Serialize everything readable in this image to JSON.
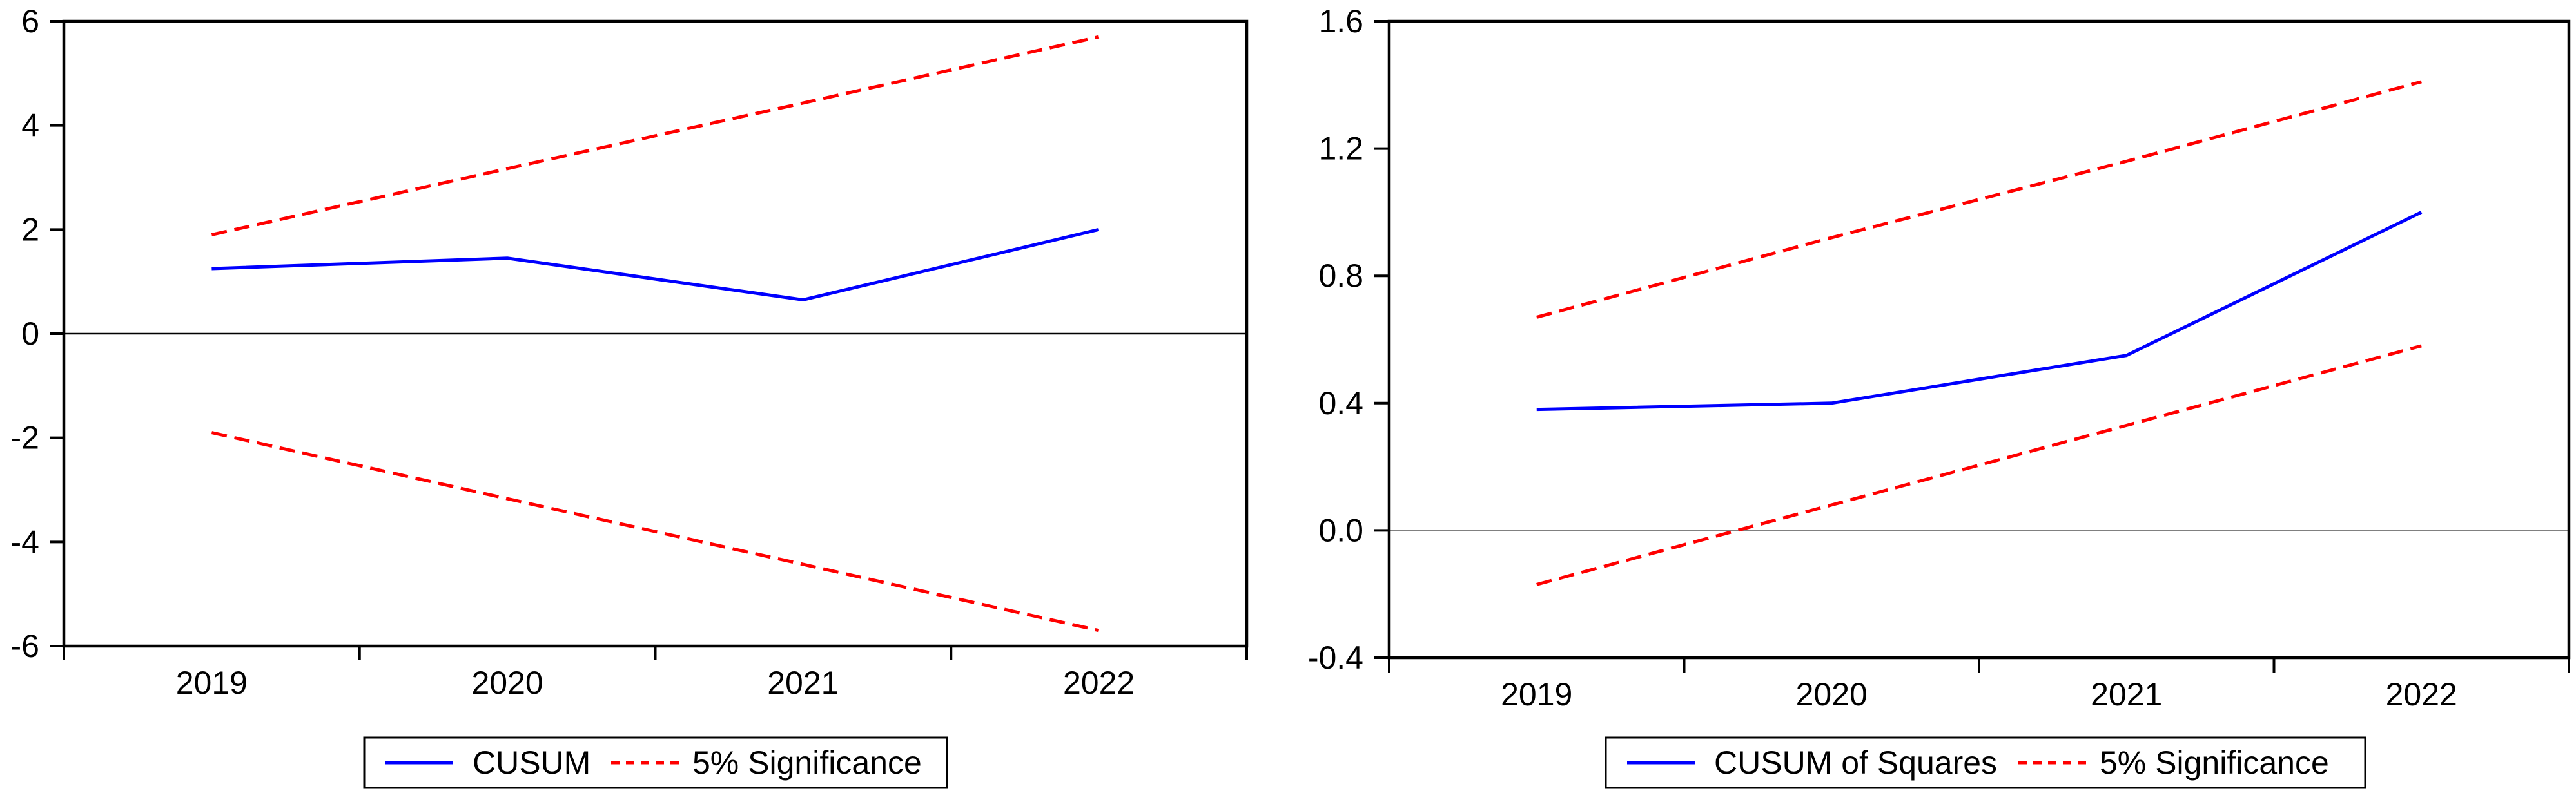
{
  "figure": {
    "background": "#ffffff",
    "colors": {
      "series_line": "#0000ff",
      "significance_line": "#ff0000",
      "axis": "#000000",
      "zero_line_left": "#000000",
      "zero_line_right": "#808080"
    }
  },
  "chart_data": [
    {
      "type": "line",
      "panel": "left",
      "title": "",
      "categories": [
        "2019",
        "2020",
        "2021",
        "2022"
      ],
      "lines": [
        {
          "name": "CUSUM",
          "color": "#0000ff",
          "dashed": false,
          "values": [
            1.25,
            1.45,
            0.65,
            2.0
          ]
        },
        {
          "name": "5% Significance upper",
          "color": "#ff0000",
          "dashed": true,
          "values": [
            1.9,
            3.17,
            4.43,
            5.7
          ]
        },
        {
          "name": "5% Significance lower",
          "color": "#ff0000",
          "dashed": true,
          "values": [
            -1.9,
            -3.17,
            -4.43,
            -5.7
          ]
        }
      ],
      "legend_items": [
        "CUSUM",
        "5% Significance"
      ],
      "xlabel": "",
      "ylabel": "",
      "ylim": [
        -6,
        6
      ],
      "yticks": [
        6,
        4,
        2,
        0,
        -2,
        -4,
        -6
      ],
      "ytick_labels": [
        "6",
        "4",
        "2",
        "0",
        "-2",
        "-4",
        "-6"
      ],
      "zero_line": true,
      "grid": false,
      "legend_position": "bottom"
    },
    {
      "type": "line",
      "panel": "right",
      "title": "",
      "categories": [
        "2019",
        "2020",
        "2021",
        "2022"
      ],
      "lines": [
        {
          "name": "CUSUM of Squares",
          "color": "#0000ff",
          "dashed": false,
          "values": [
            0.38,
            0.4,
            0.55,
            1.0
          ]
        },
        {
          "name": "5% Significance upper",
          "color": "#ff0000",
          "dashed": true,
          "values": [
            0.67,
            0.92,
            1.16,
            1.41
          ]
        },
        {
          "name": "5% Significance lower",
          "color": "#ff0000",
          "dashed": true,
          "values": [
            -0.17,
            0.08,
            0.33,
            0.58
          ]
        }
      ],
      "legend_items": [
        "CUSUM of Squares",
        "5% Significance"
      ],
      "xlabel": "",
      "ylabel": "",
      "ylim": [
        -0.4,
        1.6
      ],
      "yticks": [
        1.6,
        1.2,
        0.8,
        0.4,
        0.0,
        -0.4
      ],
      "ytick_labels": [
        "1.6",
        "1.2",
        "0.8",
        "0.4",
        "0.0",
        "-0.4"
      ],
      "zero_line": true,
      "grid": false,
      "legend_position": "bottom"
    }
  ]
}
